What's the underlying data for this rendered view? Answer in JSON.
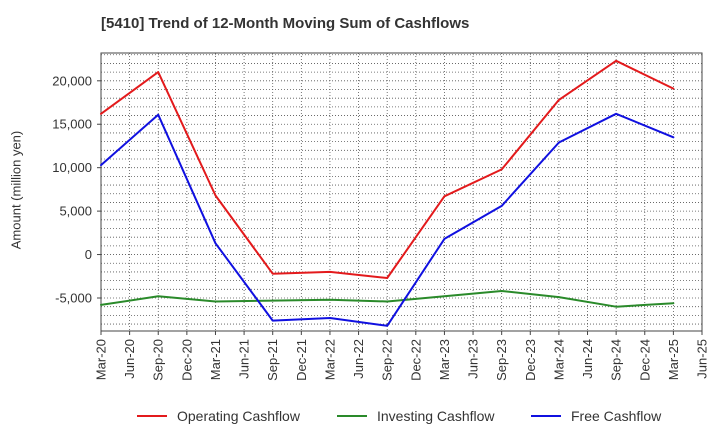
{
  "chart_data": {
    "type": "line",
    "title": "[5410]  Trend of 12-Month Moving Sum of Cashflows",
    "ylabel": "Amount (million yen)",
    "xlabel": "",
    "x_tick_labels": [
      "Mar-20",
      "Jun-20",
      "Sep-20",
      "Dec-20",
      "Mar-21",
      "Jun-21",
      "Sep-21",
      "Dec-21",
      "Mar-22",
      "Jun-22",
      "Sep-22",
      "Dec-22",
      "Mar-23",
      "Jun-23",
      "Sep-23",
      "Dec-23",
      "Mar-24",
      "Jun-24",
      "Sep-24",
      "Dec-24",
      "Mar-25",
      "Jun-25"
    ],
    "y_ticks": [
      -5000,
      0,
      5000,
      10000,
      15000,
      20000
    ],
    "y_tick_labels": [
      "-5,000",
      "0",
      "5,000",
      "10,000",
      "15,000",
      "20,000"
    ],
    "ylim": [
      -8800,
      23200
    ],
    "grid": true,
    "legend_position": "bottom",
    "x": [
      "Mar-20",
      "Sep-20",
      "Mar-21",
      "Sep-21",
      "Mar-22",
      "Sep-22",
      "Mar-23",
      "Sep-23",
      "Mar-24",
      "Sep-24",
      "Mar-25"
    ],
    "series": [
      {
        "name": "Operating Cashflow",
        "color": "#e31a1c",
        "values": [
          16200,
          21000,
          6800,
          -2200,
          -2000,
          -2700,
          6700,
          9800,
          17800,
          22300,
          19100
        ]
      },
      {
        "name": "Investing Cashflow",
        "color": "#2a8a2a",
        "values": [
          -5800,
          -4800,
          -5400,
          -5300,
          -5200,
          -5400,
          -4800,
          -4200,
          -4900,
          -6000,
          -5600
        ]
      },
      {
        "name": "Free Cashflow",
        "color": "#1010e0",
        "values": [
          10300,
          16100,
          1300,
          -7600,
          -7300,
          -8200,
          1800,
          5600,
          12900,
          16200,
          13500
        ]
      }
    ]
  }
}
